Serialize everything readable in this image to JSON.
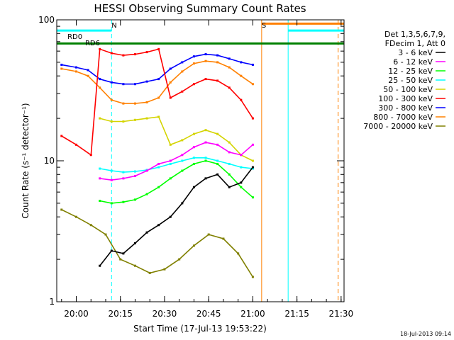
{
  "chart_data": {
    "type": "line",
    "title": "HESSI Observing Summary Count Rates",
    "xlabel": "Start Time (17-Jul-13 19:53:22)",
    "ylabel": "Count Rate (s⁻¹ detector⁻¹)",
    "y_scale": "log",
    "ylim": [
      1,
      100
    ],
    "xlim": [
      "19:53:22",
      "21:31:00"
    ],
    "x_ticks": [
      "20:00",
      "20:15",
      "20:30",
      "20:45",
      "21:00",
      "21:15",
      "21:30"
    ],
    "y_ticks": [
      "1",
      "10",
      "100"
    ],
    "grid": false,
    "legend_position": "right",
    "legend_header": [
      "Det 1,3,5,6,7,9,",
      "FDecim 1, Att 0"
    ],
    "series": [
      {
        "name": "3 - 6 keV",
        "color": "#000000",
        "x": [
          "20:08",
          "20:12",
          "20:16",
          "20:20",
          "20:24",
          "20:28",
          "20:32",
          "20:36",
          "20:40",
          "20:44",
          "20:48",
          "20:52",
          "20:56",
          "21:00"
        ],
        "values": [
          1.8,
          2.3,
          2.2,
          2.6,
          3.1,
          3.5,
          4.0,
          5.0,
          6.5,
          7.5,
          8.0,
          6.5,
          7.0,
          9.0
        ]
      },
      {
        "name": "6 - 12 keV",
        "color": "#ff00ff",
        "x": [
          "20:08",
          "20:12",
          "20:16",
          "20:20",
          "20:24",
          "20:28",
          "20:32",
          "20:36",
          "20:40",
          "20:44",
          "20:48",
          "20:52",
          "20:56",
          "21:00"
        ],
        "values": [
          7.5,
          7.3,
          7.5,
          7.8,
          8.5,
          9.5,
          10.0,
          11.0,
          12.5,
          13.5,
          13.0,
          11.5,
          11.0,
          13.0
        ]
      },
      {
        "name": "12 - 25 keV",
        "color": "#00ff00",
        "x": [
          "20:08",
          "20:12",
          "20:16",
          "20:20",
          "20:24",
          "20:28",
          "20:32",
          "20:36",
          "20:40",
          "20:44",
          "20:48",
          "20:52",
          "20:56",
          "21:00"
        ],
        "values": [
          5.2,
          5.0,
          5.1,
          5.3,
          5.8,
          6.5,
          7.5,
          8.5,
          9.5,
          10.0,
          9.5,
          8.0,
          6.5,
          5.5
        ]
      },
      {
        "name": "25 - 50 keV",
        "color": "#00ffff",
        "x": [
          "20:08",
          "20:12",
          "20:16",
          "20:20",
          "20:24",
          "20:28",
          "20:32",
          "20:36",
          "20:40",
          "20:44",
          "20:48",
          "20:52",
          "20:56",
          "21:00"
        ],
        "values": [
          8.8,
          8.5,
          8.3,
          8.4,
          8.6,
          9.0,
          9.5,
          10.0,
          10.5,
          10.5,
          10.0,
          9.5,
          9.0,
          8.8
        ]
      },
      {
        "name": "50 - 100 keV",
        "color": "#d4d400",
        "x": [
          "20:08",
          "20:12",
          "20:16",
          "20:20",
          "20:24",
          "20:28",
          "20:32",
          "20:36",
          "20:40",
          "20:44",
          "20:48",
          "20:52",
          "20:56",
          "21:00"
        ],
        "values": [
          20.0,
          19.0,
          19.0,
          19.5,
          20.0,
          20.5,
          13.0,
          14.0,
          15.5,
          16.5,
          15.5,
          13.5,
          11.0,
          10.0
        ]
      },
      {
        "name": "100 - 300 keV",
        "color": "#ff0000",
        "x": [
          "19:55",
          "20:00",
          "20:05",
          "20:08",
          "20:12",
          "20:16",
          "20:20",
          "20:24",
          "20:28",
          "20:32",
          "20:36",
          "20:40",
          "20:44",
          "20:48",
          "20:52",
          "20:56",
          "21:00"
        ],
        "values": [
          15.0,
          13.0,
          11.0,
          62.0,
          58.0,
          56.0,
          57.0,
          59.0,
          62.0,
          28.0,
          31.0,
          35.0,
          38.0,
          37.0,
          33.0,
          27.0,
          20.0
        ]
      },
      {
        "name": "300 - 800 keV",
        "color": "#0000ff",
        "x": [
          "19:55",
          "20:00",
          "20:04",
          "20:08",
          "20:12",
          "20:16",
          "20:20",
          "20:24",
          "20:28",
          "20:32",
          "20:36",
          "20:40",
          "20:44",
          "20:48",
          "20:52",
          "20:56",
          "21:00"
        ],
        "values": [
          48.0,
          46.0,
          44.0,
          38.0,
          36.0,
          35.0,
          35.0,
          36.5,
          38.0,
          45.0,
          50.0,
          55.0,
          57.0,
          56.0,
          53.0,
          50.0,
          48.0
        ]
      },
      {
        "name": "800 - 7000 keV",
        "color": "#ff8000",
        "x": [
          "19:55",
          "20:00",
          "20:04",
          "20:08",
          "20:12",
          "20:16",
          "20:20",
          "20:24",
          "20:28",
          "20:32",
          "20:36",
          "20:40",
          "20:44",
          "20:48",
          "20:52",
          "20:56",
          "21:00"
        ],
        "values": [
          45.0,
          43.0,
          40.0,
          33.0,
          27.0,
          25.5,
          25.5,
          26.0,
          28.0,
          36.0,
          43.0,
          49.0,
          51.0,
          50.0,
          46.0,
          40.0,
          35.0
        ]
      },
      {
        "name": "7000 - 20000 keV",
        "color": "#808000",
        "x": [
          "19:55",
          "20:00",
          "20:05",
          "20:10",
          "20:15",
          "20:20",
          "20:25",
          "20:30",
          "20:35",
          "20:40",
          "20:45",
          "20:50",
          "20:55",
          "21:00"
        ],
        "values": [
          4.5,
          4.0,
          3.5,
          3.0,
          2.0,
          1.8,
          1.6,
          1.7,
          2.0,
          2.5,
          3.0,
          2.8,
          2.2,
          1.5
        ]
      }
    ],
    "annotations": [
      {
        "label": "RD0",
        "x": "19:57",
        "y": 73
      },
      {
        "label": "RD6",
        "x": "20:03",
        "y": 66
      },
      {
        "label": "N",
        "x": "20:12",
        "y": 88
      },
      {
        "label": "S",
        "x": "21:03",
        "y": 88
      }
    ],
    "status_bars": [
      {
        "name": "cyan-top-left",
        "color": "#00ffff",
        "x_start": "19:53:22",
        "x_end": "20:12",
        "y": 84
      },
      {
        "name": "green-top",
        "color": "#008000",
        "x_start": "19:53:22",
        "x_end": "21:31:00",
        "y": 68
      },
      {
        "name": "orange-top",
        "color": "#ff8000",
        "x_start": "21:03",
        "x_end": "21:31:00",
        "y": 94
      },
      {
        "name": "cyan-top-right",
        "color": "#00ffff",
        "x_start": "21:12",
        "x_end": "21:31:00",
        "y": 84
      }
    ],
    "vertical_markers": [
      {
        "color": "#00ffff",
        "x": "19:53:22",
        "style": "solid"
      },
      {
        "color": "#00ffff",
        "x": "20:12",
        "style": "dashed"
      },
      {
        "color": "#ff8000",
        "x": "21:03",
        "style": "solid"
      },
      {
        "color": "#00ffff",
        "x": "21:12",
        "style": "solid"
      },
      {
        "color": "#ff8000",
        "x": "21:29",
        "style": "dashed"
      }
    ]
  },
  "footer_stamp": "18-Jul-2013 09:14"
}
